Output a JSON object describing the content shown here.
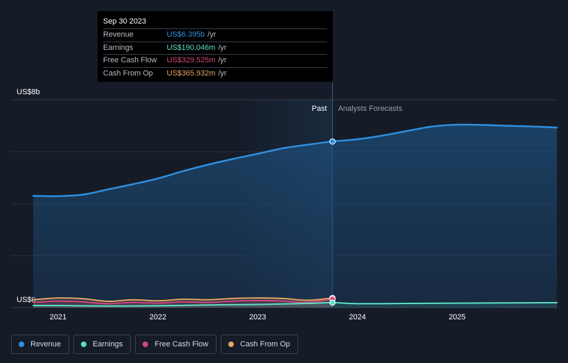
{
  "chart_data": {
    "type": "area",
    "title": "",
    "ylabel_top": "US$8b",
    "ylabel_bottom": "US$0",
    "ylim": [
      0,
      8
    ],
    "x_ticks": [
      "2021",
      "2022",
      "2023",
      "2024",
      "2025"
    ],
    "x_tick_values": [
      2021.0,
      2022.0,
      2023.0,
      2024.0,
      2025.0
    ],
    "past_label": "Past",
    "forecast_label": "Analysts Forecasts",
    "divider_x": 2023.75,
    "shade_start_x": 2022.75,
    "series": [
      {
        "name": "Revenue",
        "color": "#2f8fdf",
        "unit": "b",
        "x": [
          2020.75,
          2021.0,
          2021.25,
          2021.5,
          2021.75,
          2022.0,
          2022.25,
          2022.5,
          2022.75,
          2023.0,
          2023.25,
          2023.5,
          2023.75,
          2024.0,
          2024.25,
          2024.5,
          2024.75,
          2025.0,
          2025.25,
          2025.5,
          2025.75,
          2026.0
        ],
        "values": [
          4.3,
          4.29,
          4.35,
          4.55,
          4.75,
          4.97,
          5.25,
          5.5,
          5.72,
          5.92,
          6.13,
          6.27,
          6.395,
          6.48,
          6.62,
          6.8,
          6.97,
          7.04,
          7.03,
          7.0,
          6.97,
          6.93
        ]
      },
      {
        "name": "Earnings",
        "color": "#5ee0c5",
        "unit": "m",
        "x": [
          2020.75,
          2021.0,
          2021.5,
          2022.0,
          2022.5,
          2023.0,
          2023.5,
          2023.75,
          2024.0,
          2024.5,
          2025.0,
          2025.5,
          2026.0
        ],
        "values": [
          0.08,
          0.08,
          0.06,
          0.07,
          0.1,
          0.12,
          0.16,
          0.19,
          0.15,
          0.16,
          0.17,
          0.18,
          0.19
        ]
      },
      {
        "name": "Free Cash Flow",
        "color": "#d4477f",
        "unit": "m",
        "x": [
          2020.75,
          2021.0,
          2021.25,
          2021.5,
          2021.75,
          2022.0,
          2022.25,
          2022.5,
          2022.75,
          2023.0,
          2023.25,
          2023.5,
          2023.75
        ],
        "values": [
          0.2,
          0.25,
          0.22,
          0.15,
          0.2,
          0.17,
          0.22,
          0.2,
          0.25,
          0.27,
          0.25,
          0.2,
          0.33
        ]
      },
      {
        "name": "Cash From Op",
        "color": "#e8a562",
        "unit": "m",
        "x": [
          2020.75,
          2021.0,
          2021.25,
          2021.5,
          2021.75,
          2022.0,
          2022.25,
          2022.5,
          2022.75,
          2023.0,
          2023.25,
          2023.5,
          2023.75
        ],
        "values": [
          0.3,
          0.37,
          0.34,
          0.24,
          0.3,
          0.26,
          0.32,
          0.3,
          0.35,
          0.37,
          0.35,
          0.28,
          0.366
        ]
      }
    ]
  },
  "tooltip": {
    "date": "Sep 30 2023",
    "rows": [
      {
        "label": "Revenue",
        "value": "US$6.395b",
        "unit": "/yr",
        "color": "#2f8fdf"
      },
      {
        "label": "Earnings",
        "value": "US$190.046m",
        "unit": "/yr",
        "color": "#5ee0c5"
      },
      {
        "label": "Free Cash Flow",
        "value": "US$329.525m",
        "unit": "/yr",
        "color": "#d4477f"
      },
      {
        "label": "Cash From Op",
        "value": "US$365.932m",
        "unit": "/yr",
        "color": "#e8a562"
      }
    ]
  },
  "legend": [
    {
      "label": "Revenue",
      "color": "#2f8fdf"
    },
    {
      "label": "Earnings",
      "color": "#5ee0c5"
    },
    {
      "label": "Free Cash Flow",
      "color": "#d4477f"
    },
    {
      "label": "Cash From Op",
      "color": "#e8a562"
    }
  ]
}
